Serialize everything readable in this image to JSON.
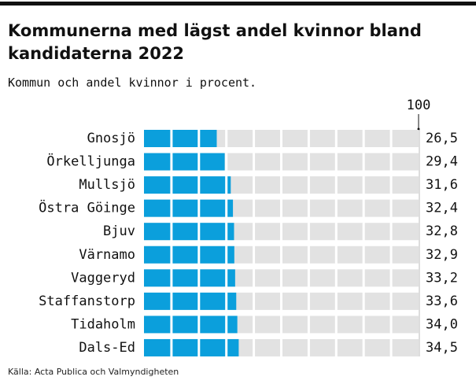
{
  "chart_data": {
    "type": "bar",
    "orientation": "horizontal",
    "title": "Kommunerna med lägst andel kvinnor bland kandidaterna 2022",
    "subtitle": "Kommun och andel kvinnor i procent.",
    "source": "Källa: Acta Publica och Valmyndigheten",
    "categories": [
      "Gnosjö",
      "Örkelljunga",
      "Mullsjö",
      "Östra Göinge",
      "Bjuv",
      "Värnamo",
      "Vaggeryd",
      "Staffanstorp",
      "Tidaholm",
      "Dals-Ed"
    ],
    "values": [
      26.5,
      29.4,
      31.6,
      32.4,
      32.8,
      32.9,
      33.2,
      33.6,
      34.0,
      34.5
    ],
    "value_labels": [
      "26,5",
      "29,4",
      "31,6",
      "32,4",
      "32,8",
      "32,9",
      "33,2",
      "33,6",
      "34,0",
      "34,5"
    ],
    "color": "#0b9fdc",
    "track_color": "#e2e2e2",
    "xlim": [
      0,
      100
    ],
    "xticks": [
      100
    ]
  }
}
